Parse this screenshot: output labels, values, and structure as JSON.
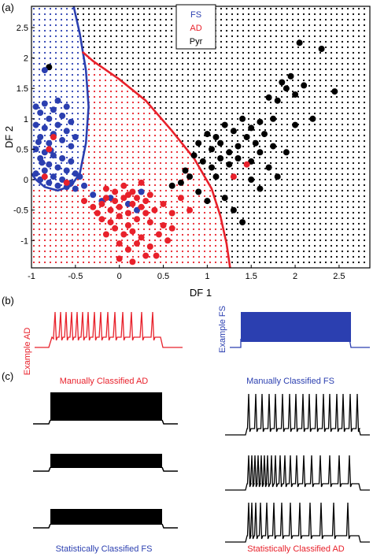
{
  "panels": {
    "a": "(a)",
    "b": "(b)",
    "c": "(c)"
  },
  "colors": {
    "fs": "#2b3fb0",
    "ad": "#e8212b",
    "pyr": "#000000"
  },
  "chart_data": [
    {
      "type": "scatter",
      "xlabel": "DF 1",
      "ylabel": "DF 2",
      "xlim": [
        -1,
        2.85
      ],
      "ylim": [
        -1.45,
        2.85
      ],
      "xticks": [
        "-1",
        "-0.5",
        "0",
        "0.5",
        "1",
        "1.5",
        "2",
        "2.5"
      ],
      "xtick_values": [
        -1,
        -0.5,
        0,
        0.5,
        1,
        1.5,
        2,
        2.5
      ],
      "yticks": [
        "-1",
        "-0.5",
        "0",
        "0.5",
        "1",
        "1.5",
        "2",
        "2.5"
      ],
      "ytick_values": [
        -1,
        -0.5,
        0,
        0.5,
        1,
        1.5,
        2,
        2.5
      ],
      "legend": {
        "position": "top-center",
        "entries": [
          "FS",
          "AD",
          "Pyr"
        ]
      },
      "regions": [
        "FS",
        "AD",
        "Pyr"
      ],
      "boundaries": [
        {
          "name": "FS",
          "points": [
            [
              -0.52,
              2.85
            ],
            [
              -0.45,
              2.4
            ],
            [
              -0.38,
              1.8
            ],
            [
              -0.35,
              1.2
            ],
            [
              -0.38,
              0.6
            ],
            [
              -0.45,
              0.1
            ],
            [
              -0.55,
              -0.1
            ],
            [
              -0.7,
              -0.18
            ],
            [
              -0.85,
              -0.12
            ],
            [
              -0.95,
              0.0
            ],
            [
              -1.0,
              0.1
            ]
          ]
        },
        {
          "name": "AD",
          "points": [
            [
              -0.42,
              2.1
            ],
            [
              -0.3,
              1.95
            ],
            [
              0.0,
              1.65
            ],
            [
              0.3,
              1.3
            ],
            [
              0.6,
              0.8
            ],
            [
              0.85,
              0.35
            ],
            [
              1.05,
              -0.15
            ],
            [
              1.15,
              -0.6
            ],
            [
              1.22,
              -1.05
            ],
            [
              1.26,
              -1.45
            ]
          ]
        }
      ],
      "series": [
        {
          "name": "FS",
          "points": [
            [
              -0.95,
              1.2
            ],
            [
              -0.9,
              1.1
            ],
            [
              -0.85,
              1.25
            ],
            [
              -0.8,
              1.0
            ],
            [
              -0.75,
              1.15
            ],
            [
              -0.7,
              1.3
            ],
            [
              -0.65,
              1.05
            ],
            [
              -0.6,
              1.2
            ],
            [
              -0.55,
              0.95
            ],
            [
              -0.95,
              0.9
            ],
            [
              -0.9,
              0.7
            ],
            [
              -0.85,
              0.85
            ],
            [
              -0.8,
              0.6
            ],
            [
              -0.75,
              0.75
            ],
            [
              -0.7,
              0.9
            ],
            [
              -0.65,
              0.65
            ],
            [
              -0.6,
              0.8
            ],
            [
              -0.55,
              0.55
            ],
            [
              -0.5,
              0.7
            ],
            [
              -0.95,
              0.5
            ],
            [
              -0.9,
              0.35
            ],
            [
              -0.85,
              0.45
            ],
            [
              -0.8,
              0.25
            ],
            [
              -0.75,
              0.4
            ],
            [
              -0.7,
              0.2
            ],
            [
              -0.65,
              0.35
            ],
            [
              -0.6,
              0.15
            ],
            [
              -0.55,
              0.3
            ],
            [
              -0.5,
              0.1
            ],
            [
              -0.95,
              0.1
            ],
            [
              -0.9,
              0.0
            ],
            [
              -0.85,
              0.15
            ],
            [
              -0.8,
              -0.05
            ],
            [
              -0.75,
              0.05
            ],
            [
              -0.7,
              -0.1
            ],
            [
              -0.65,
              0.0
            ],
            [
              -0.6,
              -0.12
            ],
            [
              -0.55,
              -0.05
            ],
            [
              -0.5,
              -0.15
            ],
            [
              -0.45,
              0.05
            ],
            [
              -0.4,
              -0.1
            ],
            [
              -0.3,
              -0.25
            ],
            [
              -0.2,
              -0.35
            ],
            [
              0.1,
              -0.4
            ],
            [
              0.2,
              -0.5
            ],
            [
              -0.1,
              -0.3
            ],
            [
              0.25,
              -0.2
            ],
            [
              -0.85,
              1.8
            ],
            [
              -0.92,
              0.62
            ],
            [
              -0.88,
              0.28
            ],
            [
              -0.78,
              0.48
            ]
          ]
        },
        {
          "name": "AD",
          "points": [
            [
              -0.8,
              0.5
            ],
            [
              -0.85,
              0.05
            ],
            [
              -0.6,
              -0.05
            ],
            [
              -0.75,
              0.7
            ],
            [
              -0.2,
              -0.4
            ],
            [
              -0.15,
              -0.3
            ],
            [
              -0.1,
              -0.5
            ],
            [
              -0.05,
              -0.35
            ],
            [
              0.0,
              -0.45
            ],
            [
              0.05,
              -0.3
            ],
            [
              0.1,
              -0.55
            ],
            [
              0.15,
              -0.4
            ],
            [
              0.2,
              -0.3
            ],
            [
              0.25,
              -0.45
            ],
            [
              0.3,
              -0.35
            ],
            [
              -0.25,
              -0.55
            ],
            [
              -0.2,
              -0.65
            ],
            [
              -0.1,
              -0.7
            ],
            [
              0.0,
              -0.6
            ],
            [
              0.1,
              -0.75
            ],
            [
              0.2,
              -0.65
            ],
            [
              0.3,
              -0.55
            ],
            [
              0.35,
              -0.7
            ],
            [
              -0.3,
              -0.45
            ],
            [
              -0.05,
              -0.8
            ],
            [
              0.05,
              -0.9
            ],
            [
              0.15,
              -0.85
            ],
            [
              0.25,
              -0.95
            ],
            [
              -0.15,
              -0.9
            ],
            [
              0.0,
              -1.05
            ],
            [
              0.1,
              -1.15
            ],
            [
              0.2,
              -1.05
            ],
            [
              0.35,
              -1.1
            ],
            [
              0.45,
              -0.9
            ],
            [
              0.55,
              -1.0
            ],
            [
              0.5,
              -0.75
            ],
            [
              0.6,
              -0.8
            ],
            [
              0.4,
              -0.5
            ],
            [
              0.5,
              -0.4
            ],
            [
              0.6,
              -0.55
            ],
            [
              -0.05,
              -0.2
            ],
            [
              0.05,
              -0.1
            ],
            [
              0.15,
              -0.2
            ],
            [
              -0.15,
              -0.15
            ],
            [
              0.25,
              -0.05
            ],
            [
              0.35,
              -0.25
            ],
            [
              0.3,
              -1.25
            ],
            [
              0.15,
              -1.35
            ],
            [
              0.0,
              -1.3
            ],
            [
              0.8,
              -0.5
            ],
            [
              0.7,
              -0.3
            ],
            [
              1.45,
              0.25
            ],
            [
              1.3,
              0.05
            ],
            [
              0.42,
              -1.25
            ],
            [
              -0.4,
              -0.35
            ],
            [
              0.1,
              -0.25
            ]
          ]
        },
        {
          "name": "Pyr",
          "points": [
            [
              -0.8,
              1.85
            ],
            [
              1.7,
              1.35
            ],
            [
              1.8,
              1.3
            ],
            [
              1.9,
              1.5
            ],
            [
              2.0,
              1.4
            ],
            [
              2.1,
              1.55
            ],
            [
              1.85,
              1.6
            ],
            [
              1.95,
              1.7
            ],
            [
              2.05,
              2.25
            ],
            [
              2.3,
              2.15
            ],
            [
              2.45,
              1.45
            ],
            [
              2.9,
              2.45
            ],
            [
              1.75,
              1.0
            ],
            [
              1.6,
              0.95
            ],
            [
              1.5,
              0.85
            ],
            [
              1.4,
              1.0
            ],
            [
              1.3,
              0.8
            ],
            [
              1.2,
              0.9
            ],
            [
              1.1,
              0.7
            ],
            [
              1.0,
              0.75
            ],
            [
              0.9,
              0.6
            ],
            [
              1.05,
              0.5
            ],
            [
              1.15,
              0.6
            ],
            [
              1.25,
              0.45
            ],
            [
              1.35,
              0.55
            ],
            [
              1.45,
              0.7
            ],
            [
              1.55,
              0.6
            ],
            [
              1.65,
              0.75
            ],
            [
              1.75,
              0.55
            ],
            [
              0.85,
              0.4
            ],
            [
              0.95,
              0.3
            ],
            [
              1.05,
              0.2
            ],
            [
              1.15,
              0.35
            ],
            [
              1.25,
              0.25
            ],
            [
              1.35,
              0.35
            ],
            [
              1.5,
              0.3
            ],
            [
              1.6,
              0.45
            ],
            [
              1.7,
              0.2
            ],
            [
              0.75,
              0.15
            ],
            [
              0.7,
              -0.05
            ],
            [
              0.8,
              0.05
            ],
            [
              0.6,
              -0.1
            ],
            [
              0.9,
              -0.2
            ],
            [
              1.0,
              -0.35
            ],
            [
              1.2,
              -0.3
            ],
            [
              1.3,
              -0.5
            ],
            [
              1.5,
              0.0
            ],
            [
              1.8,
              0.05
            ],
            [
              2.0,
              0.9
            ],
            [
              2.2,
              1.0
            ],
            [
              1.9,
              0.45
            ],
            [
              1.1,
              0.05
            ],
            [
              1.6,
              -0.15
            ],
            [
              1.4,
              -0.7
            ]
          ]
        }
      ]
    },
    {
      "type": "line",
      "description_labels": [
        "Example AD",
        "Example FS"
      ]
    }
  ],
  "panel_b": {
    "ad_label": "Example AD",
    "fs_label": "Example FS"
  },
  "panel_c": {
    "manual_ad": "Manually Classified AD",
    "manual_fs": "Manually Classified FS",
    "stat_fs": "Statistically Classified FS",
    "stat_ad": "Statistically Classified AD"
  }
}
